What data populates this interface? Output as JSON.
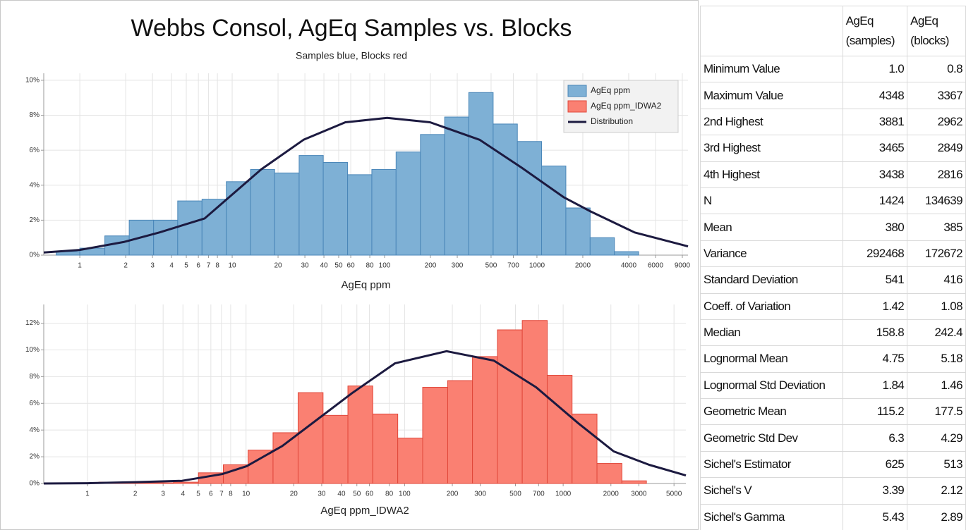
{
  "chart_data": [
    {
      "type": "histogram",
      "title": "Webbs Consol, AgEq Samples vs. Blocks",
      "subtitle": "Samples blue, Blocks red",
      "xlabel": "AgEq ppm",
      "log_x": true,
      "grid": true,
      "legend_position": "upper right",
      "legend": [
        "AgEq ppm",
        "AgEq ppm_IDWA2",
        "Distribution"
      ],
      "bins": [
        0.7,
        1.0,
        1.46,
        2.11,
        3.05,
        4.39,
        6.34,
        9.15,
        13.2,
        19.0,
        27.5,
        39.6,
        57.2,
        82.5,
        119,
        172,
        248,
        357,
        516,
        744,
        1073,
        1548,
        2234,
        3223,
        4650
      ],
      "values": [
        0.2,
        0.4,
        1.1,
        2.0,
        2.0,
        3.1,
        3.2,
        4.2,
        4.9,
        4.7,
        5.7,
        5.3,
        4.6,
        4.9,
        5.9,
        6.9,
        7.9,
        9.3,
        7.5,
        6.5,
        5.1,
        2.7,
        1.0,
        0.2
      ],
      "color": "#7eb0d5",
      "edge_color": "#4a86b8",
      "distribution": {
        "color": "#1c1a40",
        "x": [
          0.58,
          1,
          1.94,
          3.33,
          6.6,
          15.5,
          29.4,
          55.3,
          104,
          199,
          420,
          795,
          1505,
          2250,
          4376,
          9800
        ],
        "values": [
          0.15,
          0.3,
          0.75,
          1.3,
          2.1,
          4.9,
          6.6,
          7.6,
          7.85,
          7.6,
          6.6,
          5.0,
          3.3,
          2.5,
          1.3,
          0.5
        ]
      },
      "xlim": [
        0.58,
        9800
      ],
      "xticks": [
        1,
        2,
        3,
        4,
        5,
        6,
        7,
        8,
        10,
        20,
        30,
        40,
        50,
        60,
        80,
        100,
        200,
        300,
        500,
        700,
        1000,
        2000,
        4000,
        6000,
        9000
      ],
      "ylim": [
        0,
        10.4
      ],
      "yticks": [
        {
          "value": 0,
          "label": "0%"
        },
        {
          "value": 2,
          "label": "2%"
        },
        {
          "value": 4,
          "label": "4%"
        },
        {
          "value": 6,
          "label": "6%"
        },
        {
          "value": 8,
          "label": "8%"
        },
        {
          "value": 10,
          "label": "10%"
        }
      ]
    },
    {
      "type": "histogram",
      "xlabel": "AgEq ppm_IDWA2",
      "log_x": true,
      "grid": true,
      "bins": [
        1.18,
        1.69,
        2.43,
        3.49,
        5.01,
        7.19,
        10.3,
        14.8,
        21.3,
        30.6,
        43.9,
        63.0,
        90.5,
        130,
        187,
        268,
        385,
        552,
        793,
        1138,
        1634,
        2346,
        3350
      ],
      "values": [
        0.1,
        0.05,
        0.05,
        0.1,
        0.8,
        1.4,
        2.5,
        3.8,
        6.8,
        5.1,
        7.3,
        5.2,
        3.4,
        7.2,
        7.7,
        9.5,
        11.5,
        12.2,
        8.1,
        5.2,
        1.5,
        0.2
      ],
      "color": "#fa8072",
      "edge_color": "#e0473a",
      "distribution": {
        "color": "#1c1a40",
        "x": [
          0.53,
          1,
          2.0,
          3.95,
          7.07,
          10.1,
          16.9,
          28.2,
          47.1,
          87.2,
          184,
          365,
          675,
          1247,
          2085,
          3488,
          5940
        ],
        "values": [
          0.0,
          0.02,
          0.1,
          0.2,
          0.7,
          1.3,
          2.8,
          4.8,
          6.8,
          9.0,
          9.9,
          9.2,
          7.2,
          4.5,
          2.4,
          1.4,
          0.6
        ]
      },
      "xlim": [
        0.53,
        5940
      ],
      "xticks": [
        1,
        2,
        3,
        4,
        5,
        6,
        7,
        8,
        10,
        20,
        30,
        40,
        50,
        60,
        80,
        100,
        200,
        300,
        500,
        700,
        1000,
        2000,
        3000,
        5000
      ],
      "ylim": [
        0,
        13.4
      ],
      "yticks": [
        {
          "value": 0,
          "label": "0%"
        },
        {
          "value": 2,
          "label": "2%"
        },
        {
          "value": 4,
          "label": "4%"
        },
        {
          "value": 6,
          "label": "6%"
        },
        {
          "value": 8,
          "label": "8%"
        },
        {
          "value": 10,
          "label": "10%"
        },
        {
          "value": 12,
          "label": "12%"
        }
      ]
    }
  ],
  "table": {
    "header": [
      "",
      "AgEq (samples)",
      "AgEq (blocks)"
    ],
    "rows": [
      [
        "Minimum Value",
        "1.0",
        "0.8"
      ],
      [
        "Maximum Value",
        "4348",
        "3367"
      ],
      [
        "2nd Highest",
        "3881",
        "2962"
      ],
      [
        "3rd Highest",
        "3465",
        "2849"
      ],
      [
        "4th Highest",
        "3438",
        "2816"
      ],
      [
        "N",
        "1424",
        "134639"
      ],
      [
        "Mean",
        "380",
        "385"
      ],
      [
        "Variance",
        "292468",
        "172672"
      ],
      [
        "Standard Deviation",
        "541",
        "416"
      ],
      [
        "Coeff. of Variation",
        "1.42",
        "1.08"
      ],
      [
        "Median",
        "158.8",
        "242.4"
      ],
      [
        "Lognormal Mean",
        "4.75",
        "5.18"
      ],
      [
        "Lognormal Std Deviation",
        "1.84",
        "1.46"
      ],
      [
        "Geometric Mean",
        "115.2",
        "177.5"
      ],
      [
        "Geometric Std Dev",
        "6.3",
        "4.29"
      ],
      [
        "Sichel's Estimator",
        "625",
        "513"
      ],
      [
        "Sichel's V",
        "3.39",
        "2.12"
      ],
      [
        "Sichel's Gamma",
        "5.43",
        "2.89"
      ]
    ]
  }
}
